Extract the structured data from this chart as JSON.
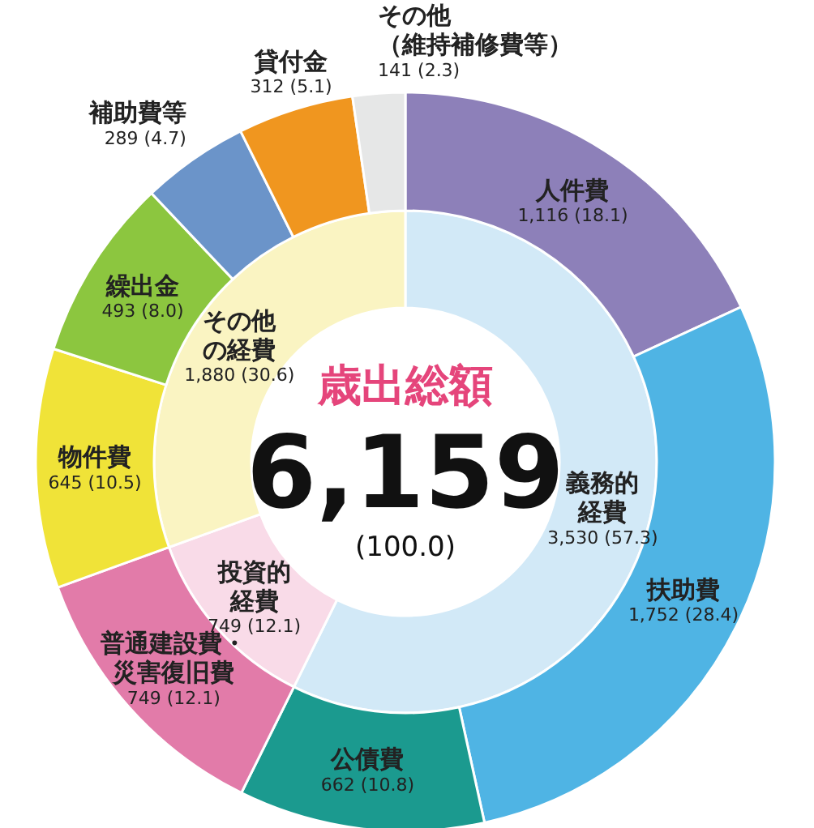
{
  "chart_data": [
    {
      "type": "donut",
      "title": "歳出総額",
      "annotations": [
        "6,159",
        "(100.0)"
      ],
      "categories": [
        "義務的経費",
        "投資的経費",
        "その他の経費"
      ],
      "values": [
        3530,
        749,
        1880
      ],
      "value_labels": [
        "3,530 (57.3)",
        "749 (12.1)",
        "1,880 (30.6)"
      ],
      "colors": [
        "#d2e9f7",
        "#f9dbe8",
        "#faf4c2"
      ]
    },
    {
      "type": "donut",
      "categories": [
        "人件費",
        "扶助費",
        "公債費",
        "普通建設費・災害復旧費",
        "物件費",
        "繰出金",
        "補助費等",
        "貸付金",
        "その他（維持補修費等）"
      ],
      "values": [
        1116,
        1752,
        662,
        749,
        645,
        493,
        289,
        312,
        141
      ],
      "value_labels": [
        "1,116 (18.1)",
        "1,752 (28.4)",
        "662 (10.8)",
        "749 (12.1)",
        "645 (10.5)",
        "493 (8.0)",
        "289 (4.7)",
        "312 (5.1)",
        "141 (2.3)"
      ],
      "colors": [
        "#8d80b9",
        "#4fb4e4",
        "#1b9a8f",
        "#e27ba9",
        "#f0e338",
        "#8cc63f",
        "#6b94c9",
        "#f0961f",
        "#e6e7e7"
      ]
    }
  ]
}
